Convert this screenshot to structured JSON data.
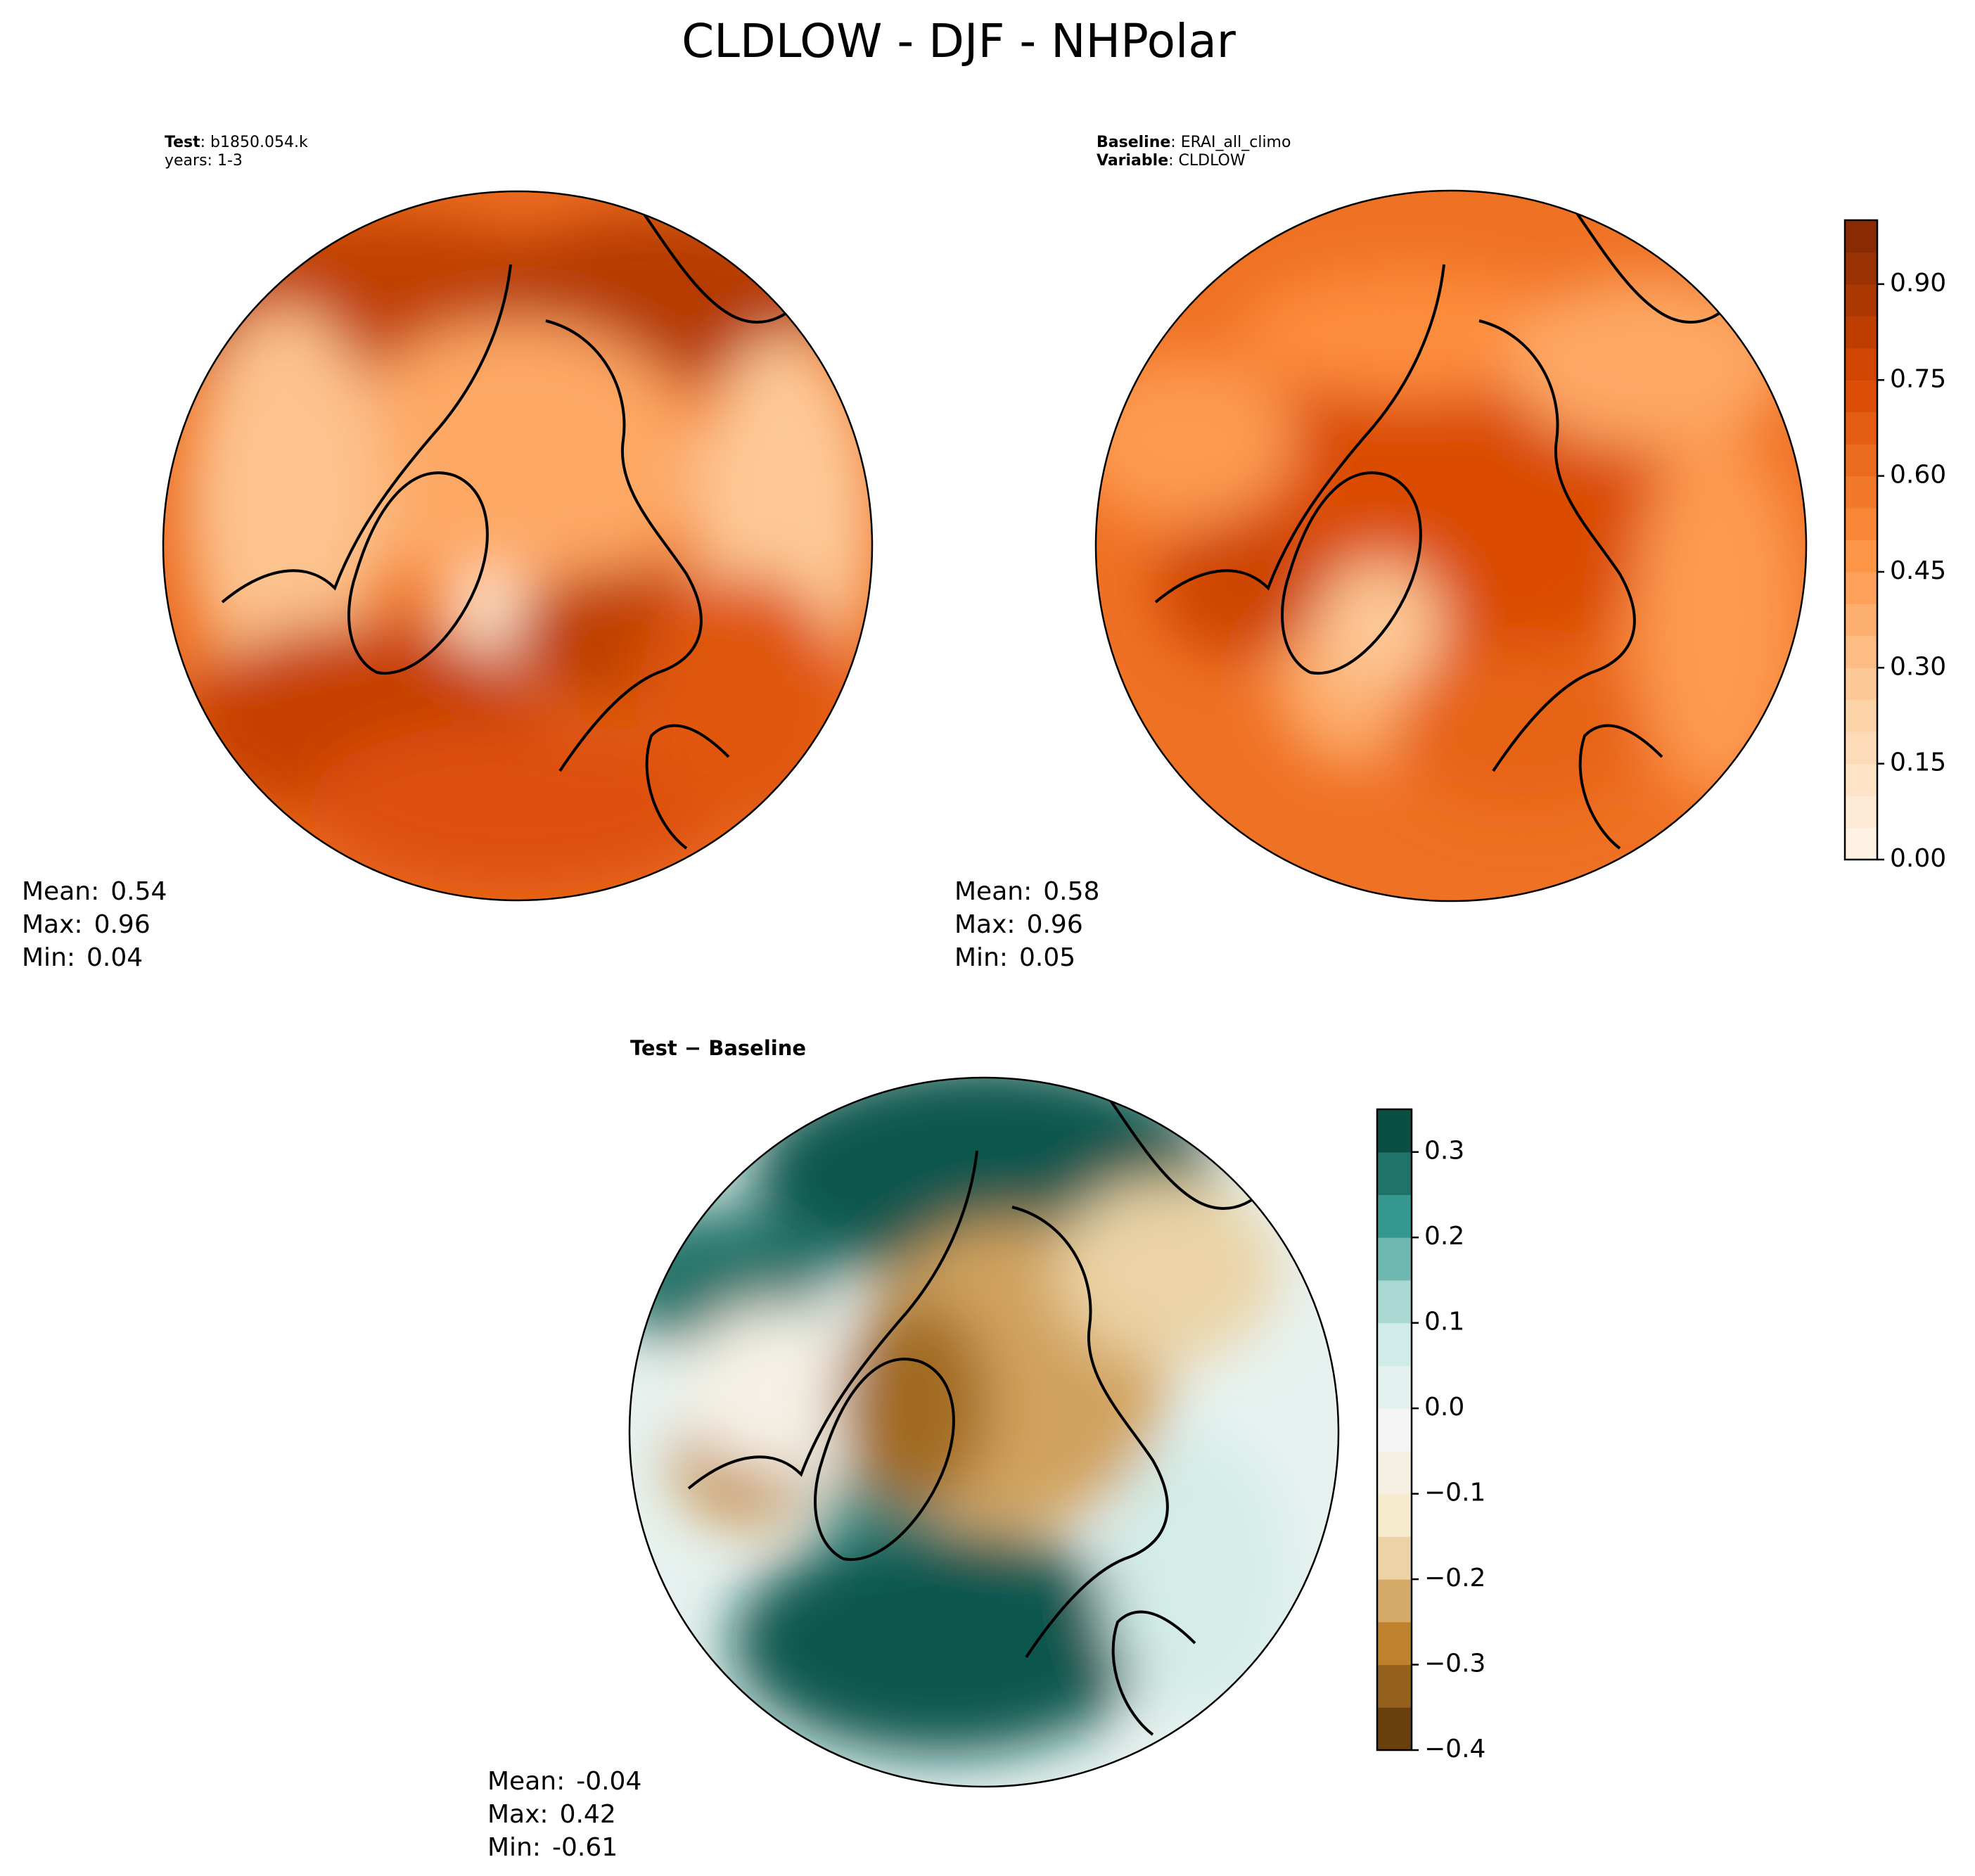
{
  "title": "CLDLOW - DJF - NHPolar",
  "panels": [
    {
      "heading": {
        "key": "Test",
        "text": ": b1850.054.k"
      },
      "subheading": "years: 1-3",
      "stats": [
        {
          "label": "Mean:",
          "value": 0.54
        },
        {
          "label": "Max:",
          "value": 0.96
        },
        {
          "label": "Min:",
          "value": 0.04
        }
      ]
    },
    {
      "heading": {
        "key": "Baseline",
        "text": ": ERAI_all_climo"
      },
      "subheading": {
        "key": "Variable",
        "text": ": CLDLOW"
      },
      "stats": [
        {
          "label": "Mean:",
          "value": 0.58
        },
        {
          "label": "Max:",
          "value": 0.96
        },
        {
          "label": "Min:",
          "value": 0.05
        }
      ]
    },
    {
      "heading": "Test − Baseline",
      "stats": [
        {
          "label": "Mean:",
          "value": -0.04
        },
        {
          "label": "Max:",
          "value": 0.42
        },
        {
          "label": "Min:",
          "value": -0.61
        }
      ]
    }
  ],
  "colorbars": [
    {
      "lim": [
        0,
        1
      ],
      "levels": 20,
      "colors": [
        "#fff5eb",
        "#fdd0a2",
        "#fd8d3c",
        "#d94801",
        "#7f2704"
      ],
      "ticks": [
        {
          "value": 0,
          "label": "0.00"
        },
        {
          "value": 0.15,
          "label": "0.15"
        },
        {
          "value": 0.3,
          "label": "0.30"
        },
        {
          "value": 0.45,
          "label": "0.45"
        },
        {
          "value": 0.6,
          "label": "0.60"
        },
        {
          "value": 0.75,
          "label": "0.75"
        },
        {
          "value": 0.9,
          "label": "0.90"
        }
      ]
    },
    {
      "lim": [
        -0.4,
        0.35
      ],
      "levels": 15,
      "colors": [
        "#543005",
        "#bf812d",
        "#f6e8c3",
        "#f5f5f5",
        "#c7eae5",
        "#35978f",
        "#003c30"
      ],
      "ticks": [
        {
          "value": -0.4,
          "label": "−0.4"
        },
        {
          "value": -0.3,
          "label": "−0.3"
        },
        {
          "value": -0.2,
          "label": "−0.2"
        },
        {
          "value": -0.1,
          "label": "−0.1"
        },
        {
          "value": 0,
          "label": "0.0"
        },
        {
          "value": 0.1,
          "label": "0.1"
        },
        {
          "value": 0.2,
          "label": "0.2"
        },
        {
          "value": 0.3,
          "label": "0.3"
        }
      ]
    }
  ]
}
